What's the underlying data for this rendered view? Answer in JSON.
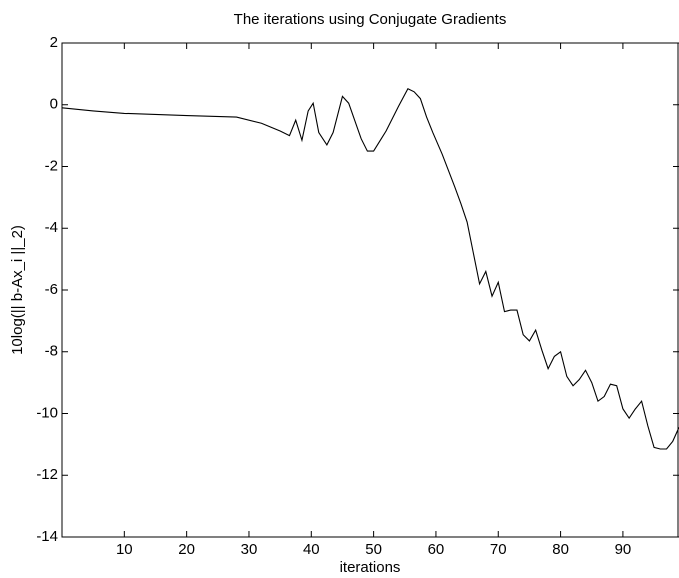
{
  "chart_data": {
    "type": "line",
    "title": "The iterations using Conjugate Gradients",
    "x_label": "iterations",
    "y_label": "10log(|| b-Ax_i ||_2)",
    "x": [
      0,
      5,
      10,
      20,
      28,
      32,
      35,
      36.5,
      37.5,
      38.5,
      39.5,
      40.3,
      41.2,
      42.5,
      43.5,
      45,
      46,
      48,
      49,
      50,
      52,
      54,
      55.5,
      56.5,
      57.5,
      58.5,
      59.5,
      61,
      63,
      64,
      65,
      66,
      67,
      68,
      69,
      70,
      71,
      72,
      73,
      74,
      75,
      76,
      77,
      78,
      79,
      80,
      81,
      82,
      83,
      84,
      85,
      86,
      87,
      88,
      89,
      90,
      91,
      92,
      93,
      94,
      95,
      96,
      97,
      98,
      99
    ],
    "values": [
      -0.1,
      -0.2,
      -0.28,
      -0.35,
      -0.4,
      -0.6,
      -0.85,
      -1.0,
      -0.5,
      -1.15,
      -0.2,
      0.05,
      -0.9,
      -1.3,
      -0.9,
      0.27,
      0.05,
      -1.1,
      -1.5,
      -1.5,
      -0.85,
      -0.05,
      0.52,
      0.42,
      0.2,
      -0.4,
      -0.9,
      -1.6,
      -2.65,
      -3.2,
      -3.8,
      -4.8,
      -5.8,
      -5.4,
      -6.2,
      -5.75,
      -6.7,
      -6.65,
      -6.65,
      -7.45,
      -7.65,
      -7.3,
      -7.95,
      -8.55,
      -8.15,
      -8.0,
      -8.8,
      -9.1,
      -8.9,
      -8.6,
      -9.0,
      -9.6,
      -9.45,
      -9.05,
      -9.1,
      -9.85,
      -10.15,
      -9.85,
      -9.6,
      -10.4,
      -11.1,
      -11.15,
      -11.15,
      -10.9,
      -10.45
    ],
    "color": "#000000",
    "xlim": [
      0,
      99
    ],
    "xticks": [
      10,
      20,
      30,
      40,
      50,
      60,
      70,
      80,
      90
    ],
    "ylim": [
      -14,
      2
    ],
    "yticks": [
      -14,
      -12,
      -10,
      -8,
      -6,
      -4,
      -2,
      0,
      2
    ],
    "grid": false
  }
}
